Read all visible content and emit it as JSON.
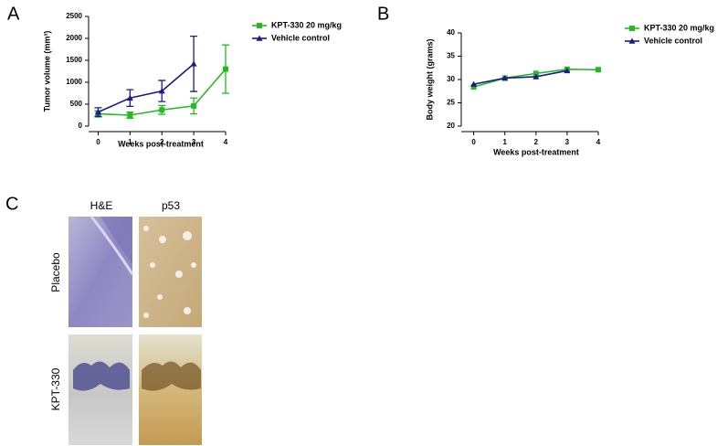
{
  "panel_letters": [
    "A",
    "B",
    "C"
  ],
  "chart_data": [
    {
      "type": "line",
      "y_label": "Tumor volume (mm³)",
      "x_label": "Weeks post-treatment",
      "x": [
        0,
        1,
        2,
        3,
        4
      ],
      "xlim": [
        -0.3,
        4
      ],
      "xticks": [
        0,
        1,
        2,
        3,
        4
      ],
      "ylim": [
        0,
        2500
      ],
      "yticks": [
        0,
        500,
        1000,
        1500,
        2000,
        2500
      ],
      "grid": false,
      "legend": "outside right",
      "series": [
        {
          "name": "KPT-330 20 mg/kg",
          "color": "#22bb22",
          "marker": "square",
          "values": [
            280,
            250,
            370,
            460,
            1300
          ],
          "errors": [
            70,
            70,
            100,
            180,
            550
          ]
        },
        {
          "name": "Vehicle control",
          "color": "#1a1a8c",
          "marker": "triangle",
          "values": [
            320,
            640,
            800,
            1420,
            null
          ],
          "errors": [
            100,
            190,
            240,
            630,
            null
          ]
        }
      ]
    },
    {
      "type": "line",
      "y_label": "Body weight (grams)",
      "x_label": "Weeks post-treatment",
      "x": [
        0,
        1,
        2,
        3,
        4
      ],
      "xlim": [
        -0.4,
        4
      ],
      "xticks": [
        0,
        1,
        2,
        3,
        4
      ],
      "ylim": [
        20,
        40
      ],
      "yticks": [
        20,
        25,
        30,
        35,
        40
      ],
      "grid": false,
      "legend": "outside right",
      "series": [
        {
          "name": "KPT-330 20 mg/kg",
          "color": "#22bb22",
          "marker": "square",
          "values": [
            28.4,
            30.3,
            31.3,
            32.2,
            32.1
          ]
        },
        {
          "name": "Vehicle control",
          "color": "#1a1a8c",
          "marker": "triangle",
          "values": [
            29.0,
            30.3,
            30.6,
            31.9,
            null
          ]
        }
      ]
    }
  ],
  "histology": {
    "columns": [
      "H&E",
      "p53"
    ],
    "rows": [
      "Placebo",
      "KPT-330"
    ]
  }
}
